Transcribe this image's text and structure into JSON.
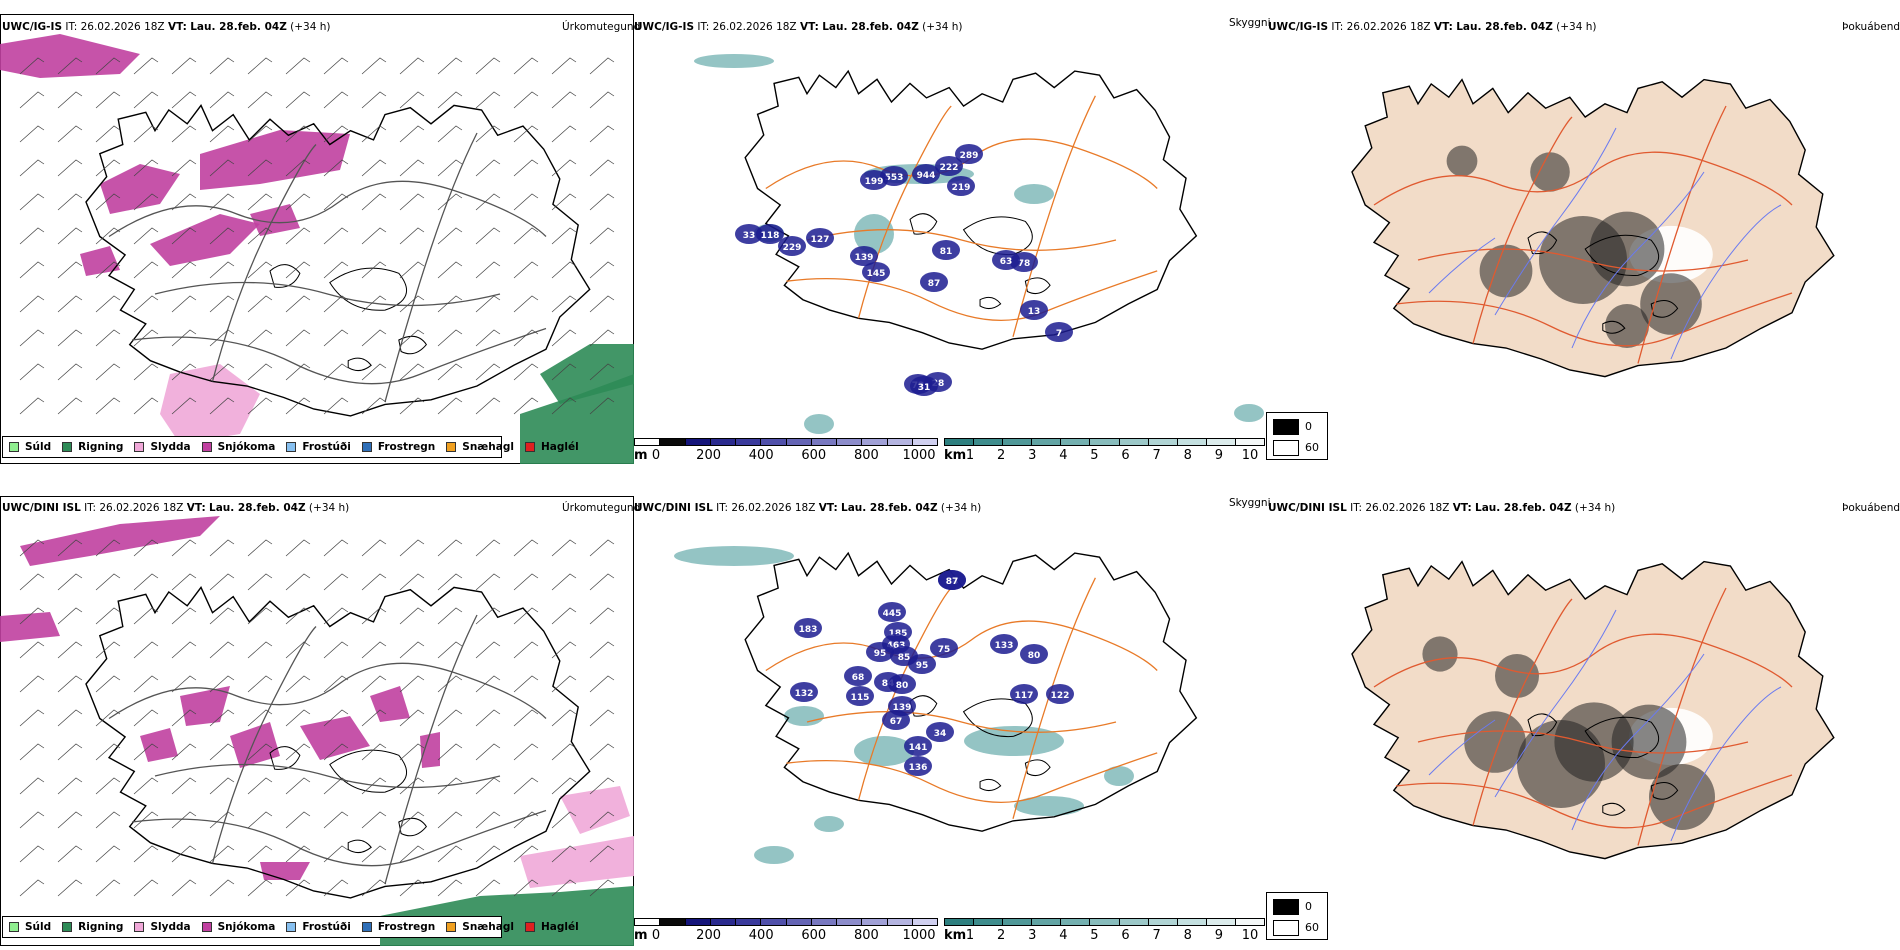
{
  "rows": [
    {
      "model": "UWC/IG-IS",
      "it_label": "IT:",
      "it_value": "26.02.2026 18Z",
      "vt_label": "VT:",
      "vt_value": "Lau. 28.feb. 04Z",
      "lead": "(+34 h)",
      "panels": {
        "precip_title": "Úrkomutegund",
        "cloud_title": "Skyggni",
        "fog_title": "Þokuábendi"
      },
      "cloud_labels": [
        "222",
        "289",
        "553",
        "944",
        "219",
        "199",
        "33",
        "118",
        "229",
        "127",
        "81",
        "78",
        "63",
        "139",
        "145",
        "87",
        "13",
        "7",
        "28",
        "72",
        "31"
      ]
    },
    {
      "model": "UWC/DINI ISL",
      "it_label": "IT:",
      "it_value": "26.02.2026 18Z",
      "vt_label": "VT:",
      "vt_value": "Lau. 28.feb. 04Z",
      "lead": "(+34 h)",
      "panels": {
        "precip_title": "Úrkomutegund",
        "cloud_title": "Skyggni",
        "fog_title": "Þokuábendi"
      },
      "cloud_labels": [
        "94",
        "445",
        "183",
        "185",
        "463",
        "95",
        "85",
        "75",
        "68",
        "84",
        "80",
        "95",
        "133",
        "80",
        "117",
        "122",
        "139",
        "67",
        "132",
        "115",
        "34",
        "141",
        "136",
        "87"
      ]
    }
  ],
  "precip_legend": [
    {
      "label": "Súld",
      "color": "#90ee90"
    },
    {
      "label": "Rigning",
      "color": "#2e8b57"
    },
    {
      "label": "Slydda",
      "color": "#f0a8d8"
    },
    {
      "label": "Snjókoma",
      "color": "#c040a0"
    },
    {
      "label": "Frostúði",
      "color": "#87c0f0"
    },
    {
      "label": "Frostregn",
      "color": "#2f6fb8"
    },
    {
      "label": "Snæhagl",
      "color": "#f0a020"
    },
    {
      "label": "Haglél",
      "color": "#e02020"
    }
  ],
  "cloud_base_bar": {
    "unit": "m",
    "ticks": [
      "0",
      "200",
      "400",
      "600",
      "800",
      "1000"
    ],
    "colors": [
      "#ffffff",
      "#0a0a0a",
      "#14147a",
      "#2a2a8e",
      "#3a3a9c",
      "#5050aa",
      "#6464b4",
      "#7878c0",
      "#8c8cca",
      "#a0a0d6",
      "#b4b4e0",
      "#d0d0f0"
    ]
  },
  "visibility_bar": {
    "unit": "km",
    "ticks": [
      "1",
      "2",
      "3",
      "4",
      "5",
      "6",
      "7",
      "8",
      "9",
      "10"
    ],
    "colors": [
      "#2e8080",
      "#3e8c8c",
      "#509898",
      "#62a4a4",
      "#74b0b0",
      "#88bcbc",
      "#9cc8c8",
      "#b0d4d4",
      "#c4e0e0",
      "#dcecec",
      "#f4f8f8"
    ]
  },
  "fog_legend": {
    "items": [
      {
        "label": "0",
        "color": "#000000"
      },
      {
        "label": "60",
        "color": "#ffffff"
      }
    ]
  },
  "colors": {
    "coast": "#000000",
    "roads": "#e87a28",
    "rivers": "#6a7af0",
    "land": "#f2dcc8",
    "snow": "#c040a0",
    "sleet": "#f0a8d8",
    "rain": "#2e8b57",
    "low_cloud": "#1c1c90",
    "vis": "#3c9494"
  }
}
